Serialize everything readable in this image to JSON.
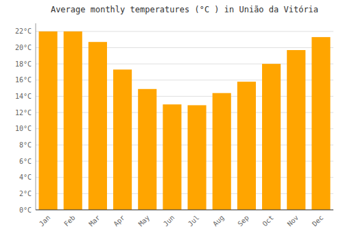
{
  "chart_data": {
    "type": "bar",
    "title": "Average monthly temperatures (°C ) in União da Vitória",
    "categories": [
      "Jan",
      "Feb",
      "Mar",
      "Apr",
      "May",
      "Jun",
      "Jul",
      "Aug",
      "Sep",
      "Oct",
      "Nov",
      "Dec"
    ],
    "values": [
      22.0,
      22.0,
      20.7,
      17.3,
      14.9,
      13.0,
      12.9,
      14.4,
      15.8,
      18.0,
      19.7,
      21.3
    ],
    "color": "#FFA500",
    "ylim": [
      0,
      23
    ],
    "yticks": [
      {
        "value": 0,
        "label": "0°C"
      },
      {
        "value": 2,
        "label": "2°C"
      },
      {
        "value": 4,
        "label": "4°C"
      },
      {
        "value": 6,
        "label": "6°C"
      },
      {
        "value": 8,
        "label": "8°C"
      },
      {
        "value": 10,
        "label": "10°C"
      },
      {
        "value": 12,
        "label": "12°C"
      },
      {
        "value": 14,
        "label": "14°C"
      },
      {
        "value": 16,
        "label": "16°C"
      },
      {
        "value": 18,
        "label": "18°C"
      },
      {
        "value": 20,
        "label": "20°C"
      },
      {
        "value": 22,
        "label": "22°C"
      }
    ],
    "grid": true
  }
}
